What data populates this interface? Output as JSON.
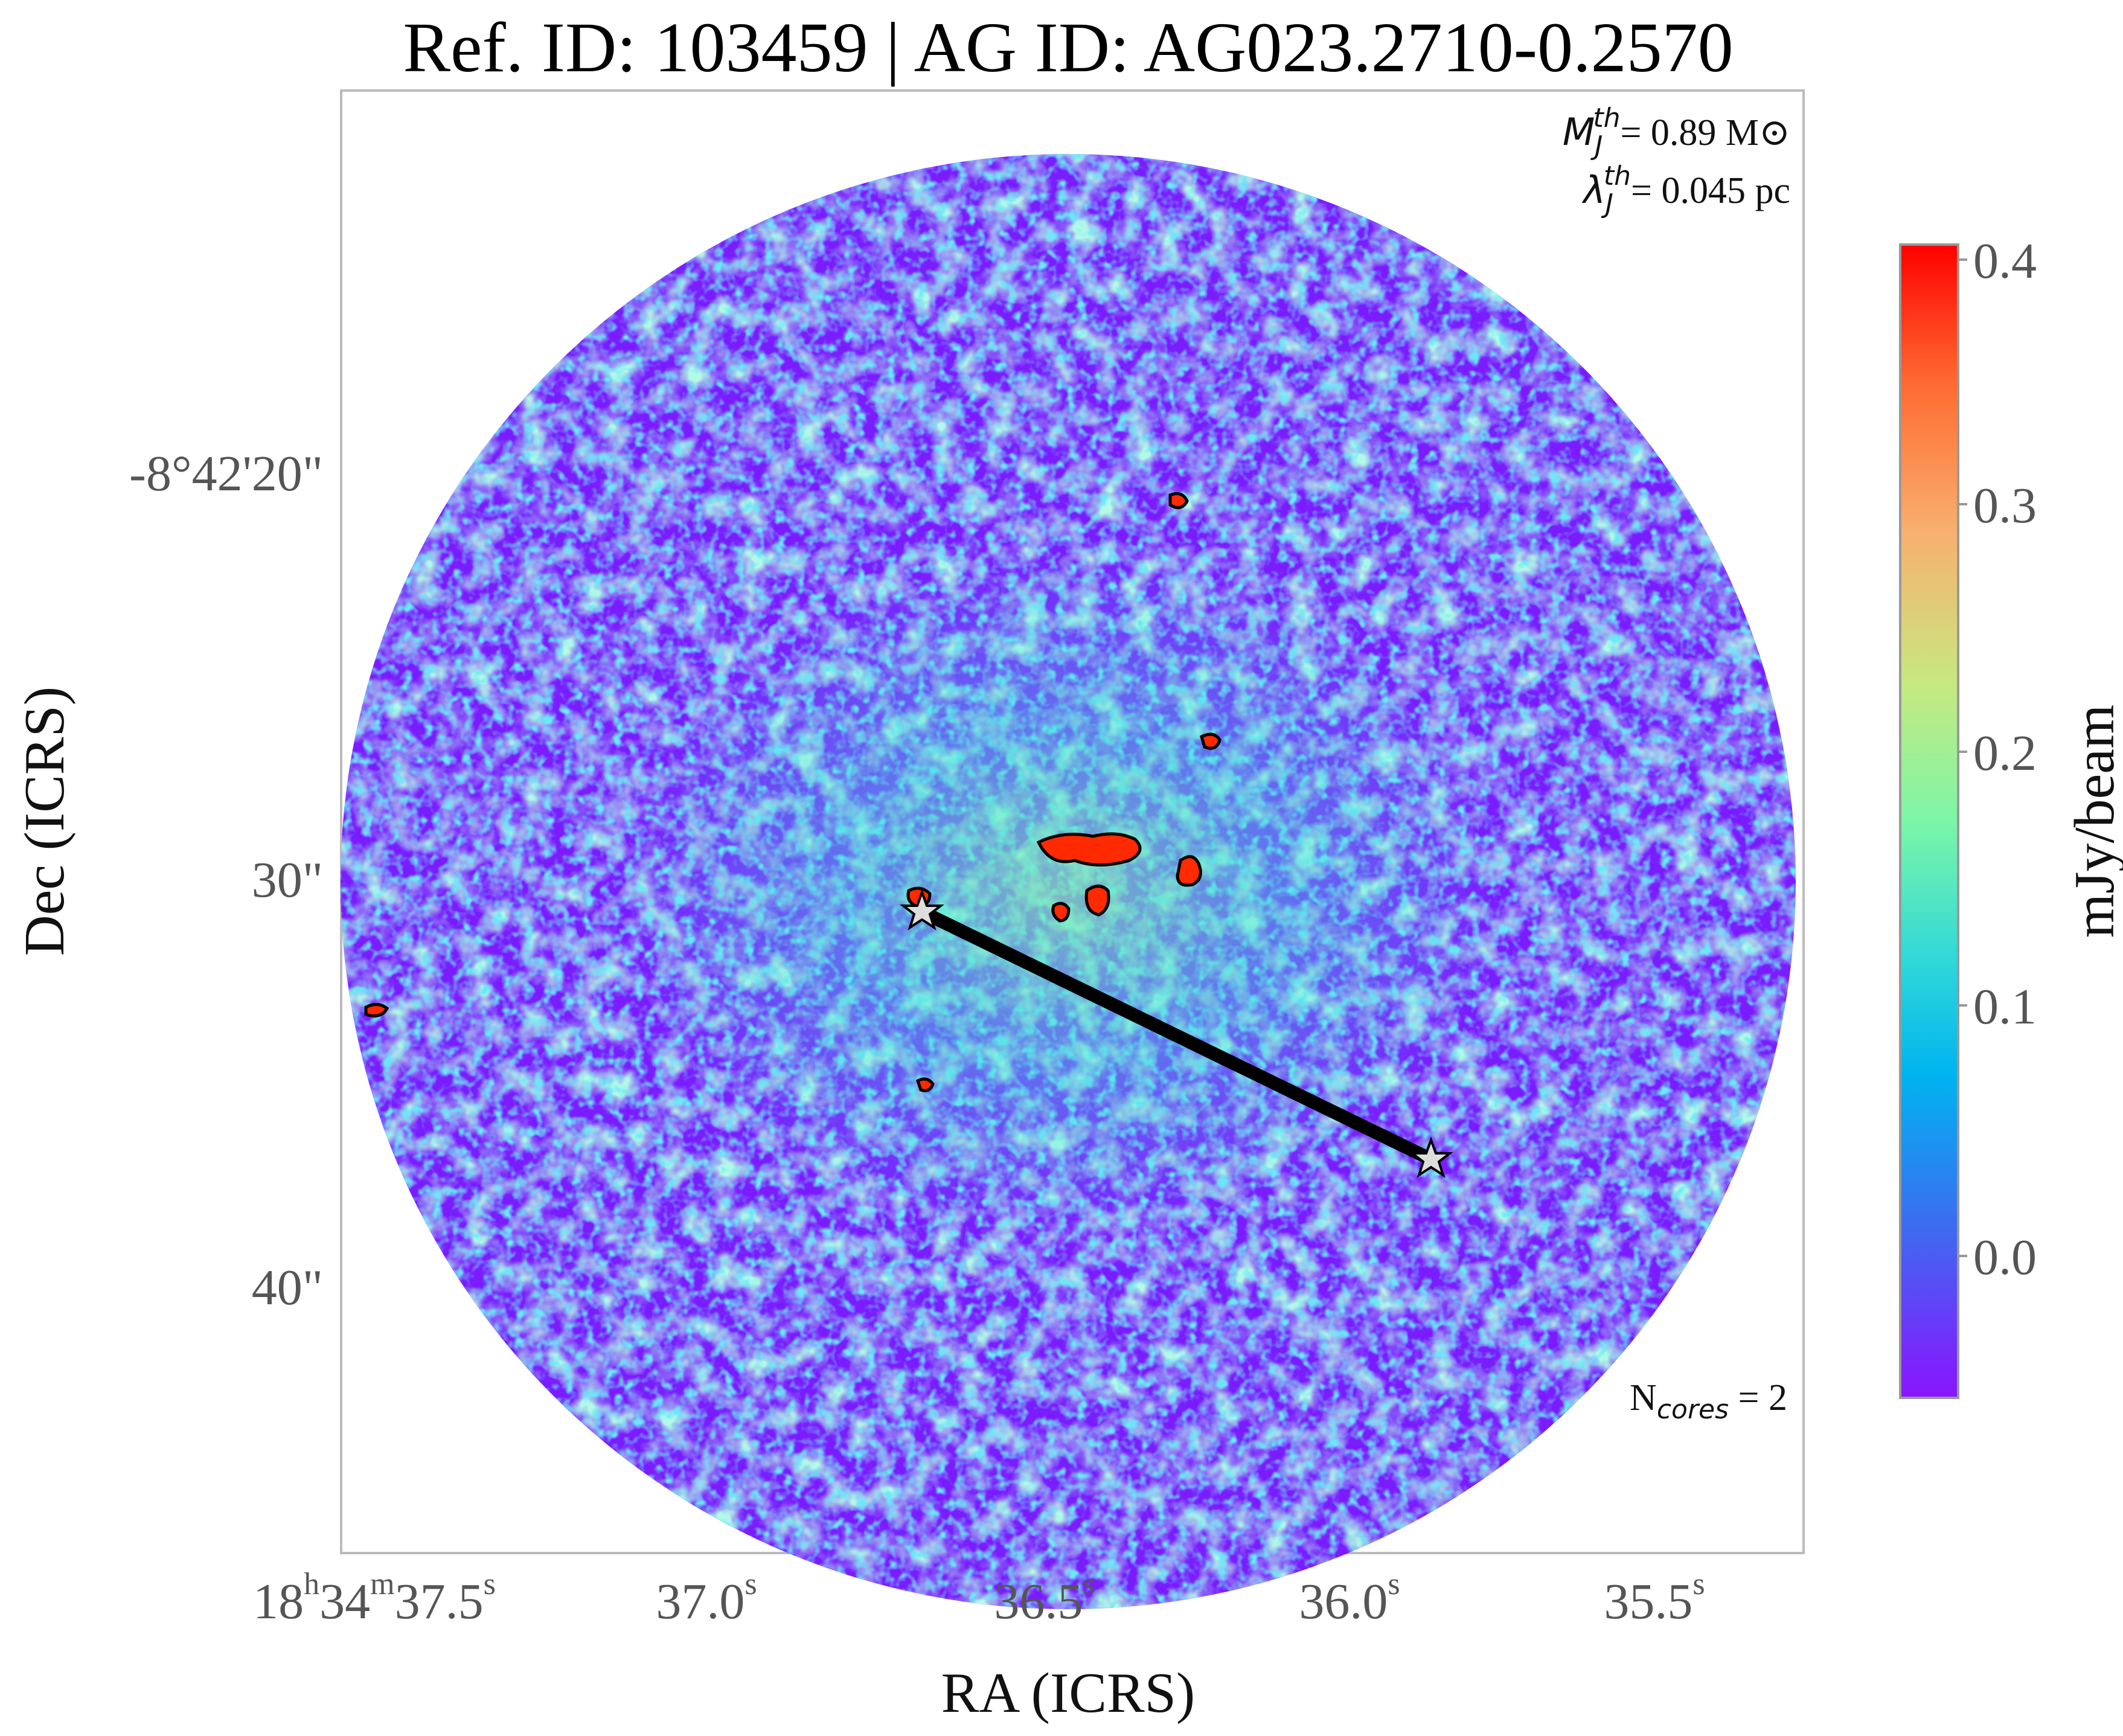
{
  "title": "Ref. ID: 103459 | AG ID: AG023.2710-0.2570",
  "axes": {
    "xlabel": "RA (ICRS)",
    "ylabel": "Dec (ICRS)",
    "x_ticks": [
      {
        "pre": "18",
        "h": "h",
        "mid": "34",
        "m": "m",
        "val": "37.5",
        "s": "s"
      },
      {
        "pre": "",
        "h": "",
        "mid": "",
        "m": "",
        "val": "37.0",
        "s": "s"
      },
      {
        "pre": "",
        "h": "",
        "mid": "",
        "m": "",
        "val": "36.5",
        "s": "s"
      },
      {
        "pre": "",
        "h": "",
        "mid": "",
        "m": "",
        "val": "36.0",
        "s": "s"
      },
      {
        "pre": "",
        "h": "",
        "mid": "",
        "m": "",
        "val": "35.5",
        "s": "s"
      }
    ],
    "y_ticks": [
      "-8°42'20\"",
      "30\"",
      "40\""
    ]
  },
  "annotations": {
    "mj_sym": "M",
    "mj_sub": "J",
    "mj_sup": "th",
    "mj_val": "= 0.89 M",
    "mj_sun": "⊙",
    "lj_sym": "λ",
    "lj_sub": "J",
    "lj_sup": "th",
    "lj_val": "= 0.045 pc",
    "ncores_base": "N",
    "ncores_sub": "cores",
    "ncores_val": " = 2"
  },
  "colorbar": {
    "label": "mJy/beam",
    "ticks": [
      "0.4",
      "0.3",
      "0.2",
      "0.1",
      "0.0"
    ],
    "colormap": "rainbow",
    "range": [
      -0.06,
      0.4
    ]
  },
  "colors": {
    "background_low": "#7a1cff",
    "mid": "#33d0f0",
    "high": "#ff2a00",
    "frame": "#bbbbbb",
    "line": "#000000",
    "star_fill": "#dddddd"
  },
  "image": {
    "field": "circular primary beam",
    "markers": 2,
    "connector": "line between two star markers"
  }
}
